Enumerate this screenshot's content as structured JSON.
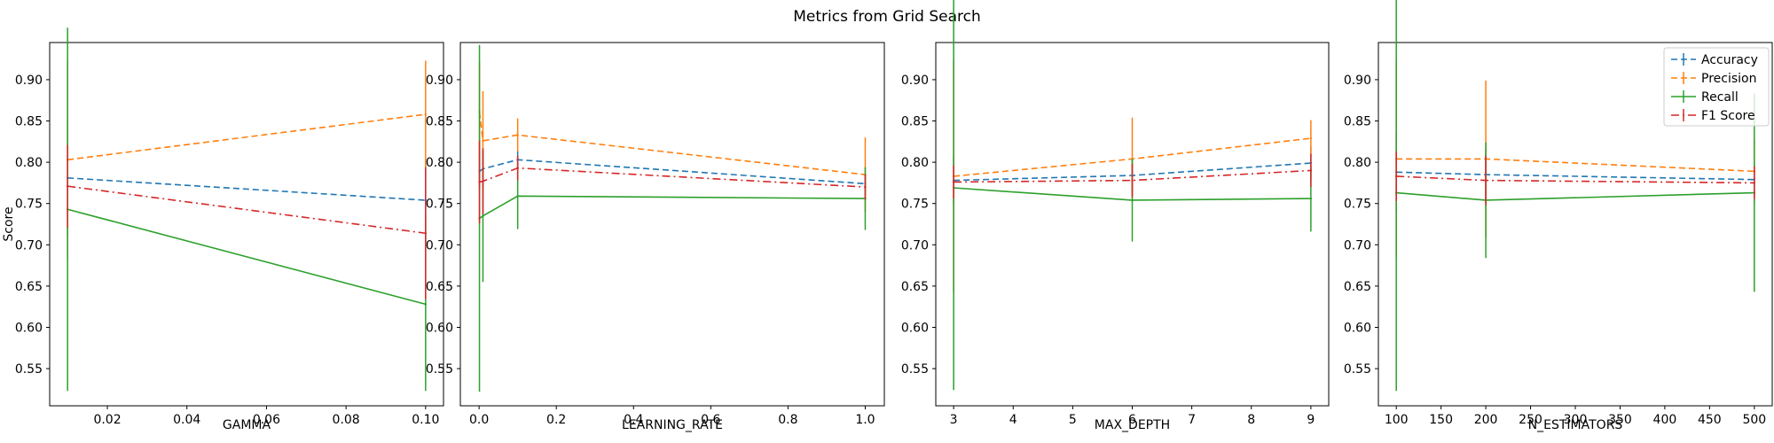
{
  "figure": {
    "title": "Metrics from Grid Search",
    "ylabel": "Score"
  },
  "legend": {
    "placement": "top-right",
    "entries": [
      "Accuracy",
      "Precision",
      "Recall",
      "F1 Score"
    ]
  },
  "colors": {
    "Accuracy": "#1f77b4",
    "Precision": "#ff7f0e",
    "Recall": "#2ca02c",
    "F1 Score": "#d62728"
  },
  "chart_data": [
    {
      "type": "line",
      "xlabel": "GAMMA",
      "xlim": [
        0.0055,
        0.1045
      ],
      "ylim": [
        0.505,
        0.945
      ],
      "xticks": [
        0.02,
        0.04,
        0.06,
        0.08,
        0.1
      ],
      "xticklabels": [
        "0.02",
        "0.04",
        "0.06",
        "0.08",
        "0.10"
      ],
      "yticks": [
        0.55,
        0.6,
        0.65,
        0.7,
        0.75,
        0.8,
        0.85,
        0.9
      ],
      "yticklabels": [
        "0.55",
        "0.60",
        "0.65",
        "0.70",
        "0.75",
        "0.80",
        "0.85",
        "0.90"
      ],
      "x": [
        0.01,
        0.1
      ],
      "series": [
        {
          "name": "Accuracy",
          "values": [
            0.781,
            0.754
          ],
          "errors": [
            0.07,
            0.05
          ]
        },
        {
          "name": "Precision",
          "values": [
            0.803,
            0.858
          ],
          "errors": [
            0.12,
            0.065
          ]
        },
        {
          "name": "Recall",
          "values": [
            0.743,
            0.628
          ],
          "errors": [
            0.22,
            0.105
          ]
        },
        {
          "name": "F1 Score",
          "values": [
            0.771,
            0.714
          ],
          "errors": [
            0.05,
            0.08
          ]
        }
      ]
    },
    {
      "type": "line",
      "xlabel": "LEARNING_RATE",
      "xlim": [
        -0.0485,
        1.0495
      ],
      "ylim": [
        0.505,
        0.945
      ],
      "xticks": [
        0.0,
        0.2,
        0.4,
        0.6,
        0.8,
        1.0
      ],
      "xticklabels": [
        "0.0",
        "0.2",
        "0.4",
        "0.6",
        "0.8",
        "1.0"
      ],
      "yticks": [
        0.55,
        0.6,
        0.65,
        0.7,
        0.75,
        0.8,
        0.85,
        0.9
      ],
      "yticklabels": [
        "0.55",
        "0.60",
        "0.65",
        "0.70",
        "0.75",
        "0.80",
        "0.85",
        "0.90"
      ],
      "x": [
        0.001,
        0.01,
        0.1,
        1.0
      ],
      "series": [
        {
          "name": "Accuracy",
          "values": [
            0.789,
            0.792,
            0.803,
            0.774
          ],
          "errors": [
            0.02,
            0.02,
            0.01,
            0.01
          ]
        },
        {
          "name": "Precision",
          "values": [
            0.861,
            0.826,
            0.833,
            0.785
          ],
          "errors": [
            0.06,
            0.06,
            0.02,
            0.045
          ]
        },
        {
          "name": "Recall",
          "values": [
            0.732,
            0.735,
            0.759,
            0.756
          ],
          "errors": [
            0.21,
            0.08,
            0.04,
            0.038
          ]
        },
        {
          "name": "F1 Score",
          "values": [
            0.776,
            0.777,
            0.793,
            0.77
          ],
          "errors": [
            0.05,
            0.04,
            0.015,
            0.015
          ]
        }
      ]
    },
    {
      "type": "line",
      "xlabel": "MAX_DEPTH",
      "xlim": [
        2.7,
        9.3
      ],
      "ylim": [
        0.505,
        0.945
      ],
      "xticks": [
        3,
        4,
        5,
        6,
        7,
        8,
        9
      ],
      "xticklabels": [
        "3",
        "4",
        "5",
        "6",
        "7",
        "8",
        "9"
      ],
      "yticks": [
        0.55,
        0.6,
        0.65,
        0.7,
        0.75,
        0.8,
        0.85,
        0.9
      ],
      "yticklabels": [
        "0.55",
        "0.60",
        "0.65",
        "0.70",
        "0.75",
        "0.80",
        "0.85",
        "0.90"
      ],
      "x": [
        3,
        6,
        9
      ],
      "series": [
        {
          "name": "Accuracy",
          "values": [
            0.778,
            0.784,
            0.799
          ],
          "errors": [
            0.03,
            0.02,
            0.02
          ]
        },
        {
          "name": "Precision",
          "values": [
            0.783,
            0.804,
            0.829
          ],
          "errors": [
            0.14,
            0.05,
            0.022
          ]
        },
        {
          "name": "Recall",
          "values": [
            0.769,
            0.754,
            0.756
          ],
          "errors": [
            0.245,
            0.05,
            0.04
          ]
        },
        {
          "name": "F1 Score",
          "values": [
            0.776,
            0.778,
            0.79
          ],
          "errors": [
            0.02,
            0.02,
            0.02
          ]
        }
      ]
    },
    {
      "type": "line",
      "xlabel": "N_ESTIMATORS",
      "xlim": [
        80,
        520
      ],
      "ylim": [
        0.505,
        0.945
      ],
      "xticks": [
        100,
        150,
        200,
        250,
        300,
        350,
        400,
        450,
        500
      ],
      "xticklabels": [
        "100",
        "150",
        "200",
        "250",
        "300",
        "350",
        "400",
        "450",
        "500"
      ],
      "yticks": [
        0.55,
        0.6,
        0.65,
        0.7,
        0.75,
        0.8,
        0.85,
        0.9
      ],
      "yticklabels": [
        "0.55",
        "0.60",
        "0.65",
        "0.70",
        "0.75",
        "0.80",
        "0.85",
        "0.90"
      ],
      "x": [
        100,
        200,
        500
      ],
      "series": [
        {
          "name": "Accuracy",
          "values": [
            0.788,
            0.785,
            0.779
          ],
          "errors": [
            0.05,
            0.03,
            0.02
          ]
        },
        {
          "name": "Precision",
          "values": [
            0.804,
            0.804,
            0.789
          ],
          "errors": [
            0.12,
            0.095,
            0.04
          ]
        },
        {
          "name": "Recall",
          "values": [
            0.763,
            0.754,
            0.763
          ],
          "errors": [
            0.24,
            0.07,
            0.12
          ]
        },
        {
          "name": "F1 Score",
          "values": [
            0.783,
            0.778,
            0.775
          ],
          "errors": [
            0.03,
            0.03,
            0.02
          ]
        }
      ]
    }
  ]
}
